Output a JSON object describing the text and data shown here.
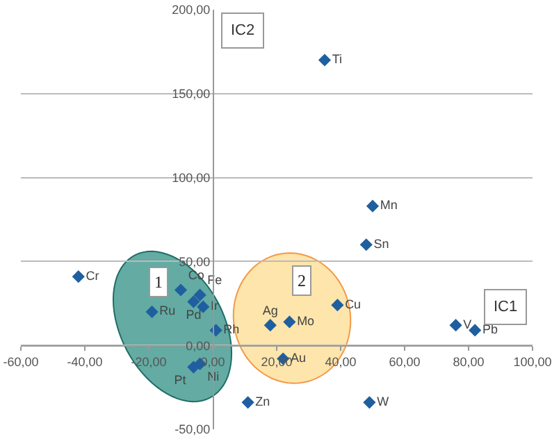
{
  "chart_data": {
    "type": "scatter",
    "xlabel": "IC1",
    "ylabel": "IC2",
    "annotations": [
      "1",
      "2"
    ],
    "xlim": [
      -60,
      100
    ],
    "ylim": [
      -50,
      200
    ],
    "xticks": [
      {
        "value": -60,
        "label": "-60,00"
      },
      {
        "value": -40,
        "label": "-40,00"
      },
      {
        "value": -20,
        "label": "-20,00"
      },
      {
        "value": 0,
        "label": "0,00"
      },
      {
        "value": 20,
        "label": "20,00"
      },
      {
        "value": 40,
        "label": "40,00"
      },
      {
        "value": 60,
        "label": "60,00"
      },
      {
        "value": 80,
        "label": "80,00"
      },
      {
        "value": 100,
        "label": "100,00"
      }
    ],
    "yticks": [
      {
        "value": -50,
        "label": "-50,00"
      },
      {
        "value": 0,
        "label": "0,00"
      },
      {
        "value": 50,
        "label": "50,00"
      },
      {
        "value": 100,
        "label": "100,00"
      },
      {
        "value": 150,
        "label": "150,00"
      },
      {
        "value": 200,
        "label": "200,00"
      }
    ],
    "grid": "y",
    "legend": false,
    "marker": "diamond",
    "series": [
      {
        "name": "Ti",
        "color": "#1f5fa0",
        "x": [
          35
        ],
        "values": [
          170
        ]
      },
      {
        "name": "Mn",
        "color": "#1f5fa0",
        "x": [
          50
        ],
        "values": [
          83
        ]
      },
      {
        "name": "Sn",
        "color": "#1f5fa0",
        "x": [
          48
        ],
        "values": [
          60
        ]
      },
      {
        "name": "Cr",
        "color": "#1f5fa0",
        "x": [
          -42
        ],
        "values": [
          41
        ]
      },
      {
        "name": "Co",
        "color": "#1f5fa0",
        "x": [
          -10
        ],
        "values": [
          33
        ]
      },
      {
        "name": "Fe",
        "color": "#1f5fa0",
        "x": [
          -4
        ],
        "values": [
          30
        ]
      },
      {
        "name": "Pd",
        "color": "#1f5fa0",
        "x": [
          -6
        ],
        "values": [
          26
        ]
      },
      {
        "name": "Ir",
        "color": "#1f5fa0",
        "x": [
          -3
        ],
        "values": [
          23
        ]
      },
      {
        "name": "Ru",
        "color": "#1f5fa0",
        "x": [
          -19
        ],
        "values": [
          20
        ]
      },
      {
        "name": "Rh",
        "color": "#1f5fa0",
        "x": [
          1
        ],
        "values": [
          9
        ]
      },
      {
        "name": "Ni",
        "color": "#1f5fa0",
        "x": [
          -4
        ],
        "values": [
          -11
        ]
      },
      {
        "name": "Pt",
        "color": "#1f5fa0",
        "x": [
          -6
        ],
        "values": [
          -13
        ]
      },
      {
        "name": "Zn",
        "color": "#1f5fa0",
        "x": [
          11
        ],
        "values": [
          -34
        ]
      },
      {
        "name": "Ag",
        "color": "#1f5fa0",
        "x": [
          18
        ],
        "values": [
          12
        ]
      },
      {
        "name": "Mo",
        "color": "#1f5fa0",
        "x": [
          24
        ],
        "values": [
          14
        ]
      },
      {
        "name": "Au",
        "color": "#1f5fa0",
        "x": [
          22
        ],
        "values": [
          -8
        ]
      },
      {
        "name": "Cu",
        "color": "#1f5fa0",
        "x": [
          39
        ],
        "values": [
          24
        ]
      },
      {
        "name": "V",
        "color": "#1f5fa0",
        "x": [
          76
        ],
        "values": [
          12
        ]
      },
      {
        "name": "Pb",
        "color": "#1f5fa0",
        "x": [
          82
        ],
        "values": [
          9
        ]
      },
      {
        "name": "W",
        "color": "#1f5fa0",
        "x": [
          49
        ],
        "values": [
          -34
        ]
      }
    ]
  }
}
